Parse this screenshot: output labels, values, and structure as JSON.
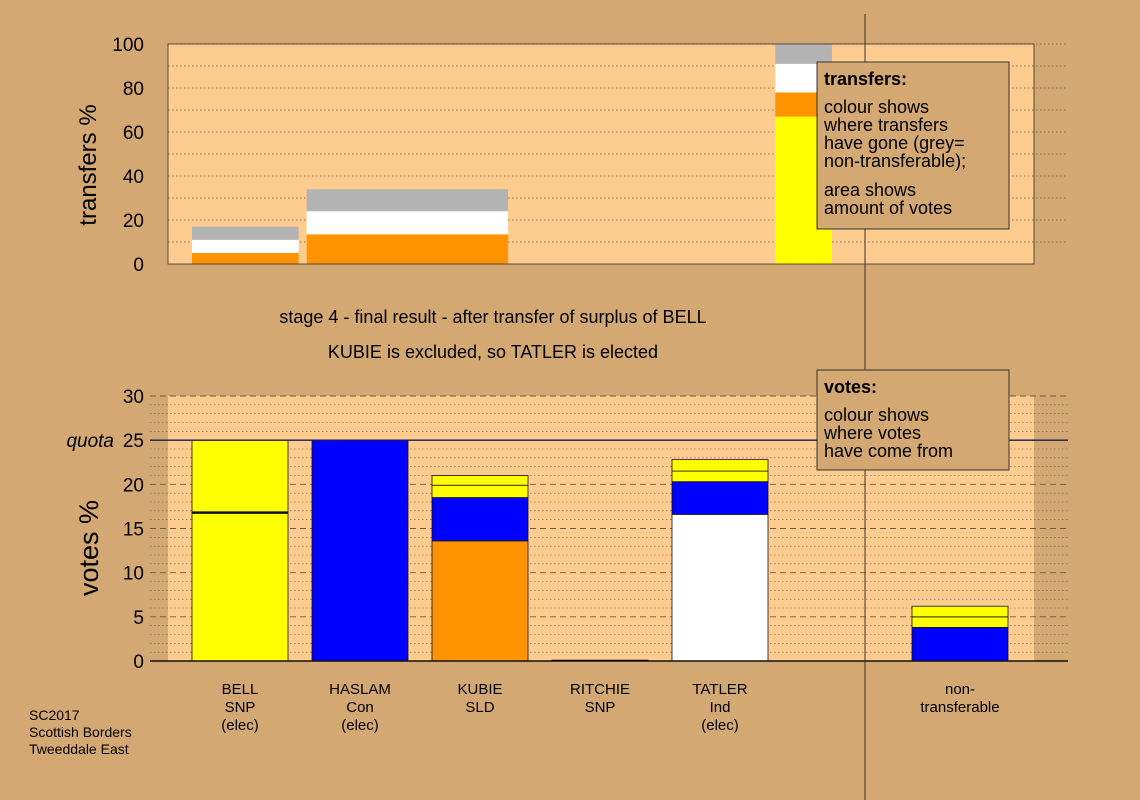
{
  "colors": {
    "background": "#d4a872",
    "plot_area": "#ffcc8f",
    "legend_box": "#d4a872",
    "SNP": "#ffff00",
    "Con": "#0000ff",
    "SLD": "#ff9400",
    "Ind": "#ffffff",
    "non_transferable": "#b3b3b3"
  },
  "stage_text": {
    "line1": "stage 4 - final result - after transfer of surplus of BELL",
    "line2": "KUBIE is excluded, so TATLER is elected"
  },
  "footer": {
    "line1": "SC2017",
    "line2": "Scottish Borders",
    "line3": "Tweeddale East"
  },
  "legend_transfers": {
    "title": "transfers:",
    "para1": [
      "colour shows",
      "where transfers",
      "have gone (grey=",
      "non-transferable);"
    ],
    "para2": [
      "area shows",
      "amount of votes"
    ]
  },
  "legend_votes": {
    "title": "votes:",
    "para1": [
      "colour shows",
      "where votes",
      "have come from"
    ]
  },
  "chart_data": [
    {
      "type": "bar",
      "stacked": true,
      "ylabel": "transfers %",
      "ylim": [
        0,
        100
      ],
      "yticks": [
        0,
        20,
        40,
        60,
        80,
        100
      ],
      "grid": "dotted",
      "bars": [
        {
          "x_start": 0,
          "x_end": 0.165,
          "segments": [
            {
              "color": "SLD",
              "value": 5
            },
            {
              "color": "Ind",
              "value": 6
            },
            {
              "color": "non_transferable",
              "value": 6
            }
          ]
        },
        {
          "x_start": 0.165,
          "x_end": 0.489,
          "segments": [
            {
              "color": "SLD",
              "value": 13.5
            },
            {
              "color": "Ind",
              "value": 10.5
            },
            {
              "color": "non_transferable",
              "value": 10
            }
          ]
        },
        {
          "x_start": 0.89,
          "x_end": 0.99,
          "segments": [
            {
              "color": "SNP",
              "value": 67
            },
            {
              "color": "SLD",
              "value": 11
            },
            {
              "color": "Ind",
              "value": 13
            },
            {
              "color": "non_transferable",
              "value": 9
            }
          ]
        }
      ]
    },
    {
      "type": "bar",
      "stacked": true,
      "ylabel": "votes %",
      "ylim": [
        0,
        30
      ],
      "yticks": [
        0,
        5,
        10,
        15,
        20,
        25,
        30
      ],
      "quota": {
        "value": 25,
        "label": "quota"
      },
      "grid": "dashed",
      "categories": [
        {
          "lines": [
            "BELL",
            "SNP",
            "(elec)"
          ]
        },
        {
          "lines": [
            "HASLAM",
            "Con",
            "(elec)"
          ]
        },
        {
          "lines": [
            "KUBIE",
            "SLD"
          ]
        },
        {
          "lines": [
            "RITCHIE",
            "SNP"
          ]
        },
        {
          "lines": [
            "TATLER",
            "Ind",
            "(elec)"
          ]
        },
        {
          "lines": [
            "non-",
            "transferable"
          ]
        }
      ],
      "series": [
        {
          "name": "BELL",
          "segments": [
            {
              "color": "SNP",
              "value": 16.8
            },
            {
              "color": "SNP",
              "value": 8.2
            }
          ]
        },
        {
          "name": "HASLAM",
          "segments": [
            {
              "color": "Con",
              "value": 25
            }
          ]
        },
        {
          "name": "KUBIE",
          "segments": [
            {
              "color": "SLD",
              "value": 13.6
            },
            {
              "color": "Con",
              "value": 4.9
            },
            {
              "color": "SNP",
              "value": 1.4
            },
            {
              "color": "SNP",
              "value": 1.1
            }
          ]
        },
        {
          "name": "RITCHIE",
          "segments": [
            {
              "color": "SNP",
              "value": 0.1
            }
          ]
        },
        {
          "name": "TATLER",
          "segments": [
            {
              "color": "Ind",
              "value": 16.6
            },
            {
              "color": "Con",
              "value": 3.7
            },
            {
              "color": "SNP",
              "value": 1.2
            },
            {
              "color": "SNP",
              "value": 1.3
            }
          ]
        },
        {
          "name": "non-transferable",
          "segments": [
            {
              "color": "Con",
              "value": 3.8
            },
            {
              "color": "SNP",
              "value": 1.2
            },
            {
              "color": "SNP",
              "value": 1.2
            }
          ]
        }
      ]
    }
  ]
}
